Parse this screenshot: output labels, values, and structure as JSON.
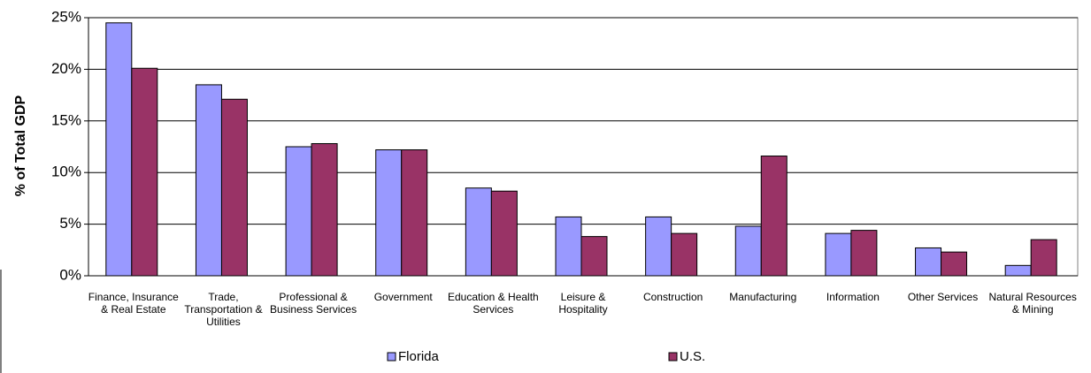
{
  "chart_data": {
    "type": "bar",
    "y_label": "% of Total GDP",
    "categories": [
      "Finance, Insurance & Real Estate",
      "Trade, Transportation & Utilities",
      "Professional & Business Services",
      "Government",
      "Education & Health Services",
      "Leisure & Hospitality",
      "Construction",
      "Manufacturing",
      "Information",
      "Other Services",
      "Natural Resources & Mining"
    ],
    "series": [
      {
        "name": "Florida",
        "color": "#9999ff",
        "values": [
          24.5,
          18.5,
          12.5,
          12.2,
          8.5,
          5.7,
          5.7,
          4.8,
          4.1,
          2.7,
          1.0
        ]
      },
      {
        "name": "U.S.",
        "color": "#993366",
        "values": [
          20.1,
          17.1,
          12.8,
          12.2,
          8.2,
          3.8,
          4.1,
          11.6,
          4.4,
          2.3,
          3.5
        ]
      }
    ],
    "ylim": [
      0,
      25
    ],
    "yticks": [
      {
        "value": 0,
        "label": "0%"
      },
      {
        "value": 5,
        "label": "5%"
      },
      {
        "value": 10,
        "label": "10%"
      },
      {
        "value": 15,
        "label": "15%"
      },
      {
        "value": 20,
        "label": "20%"
      },
      {
        "value": 25,
        "label": "25%"
      }
    ],
    "grid": true,
    "legend": "bottom"
  }
}
